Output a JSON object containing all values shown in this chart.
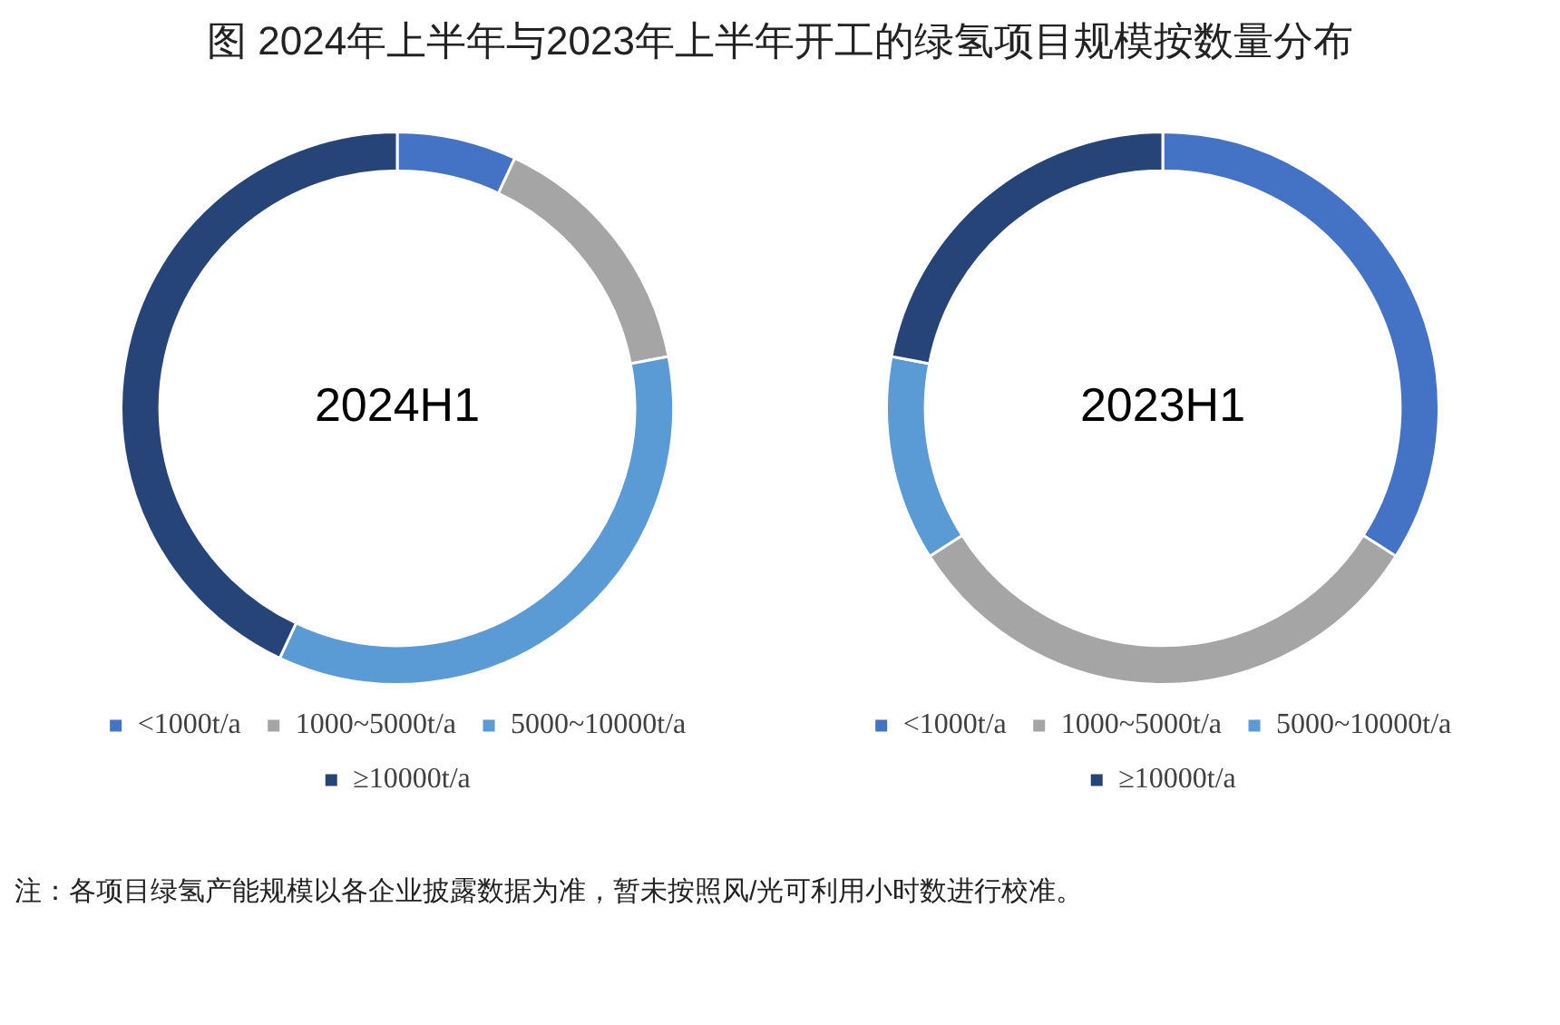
{
  "chart_data": [
    {
      "type": "donut",
      "title": "图  2024年上半年与2023年上半年开工的绿氢项目规模按数量分布",
      "annotations": [
        "2024H1"
      ],
      "categories": [
        "<1000t/a",
        "1000~5000t/a",
        "5000~10000t/a",
        "≥10000t/a"
      ],
      "values": [
        7,
        15,
        35,
        43
      ],
      "colors": [
        "#4472c4",
        "#a5a5a5",
        "#5b9bd5",
        "#264478"
      ],
      "legend": "bottom"
    },
    {
      "type": "donut",
      "annotations": [
        "2023H1",
        "注：各项目绿氢产能规模以各企业披露数据为准，暂未按照风/光可利用小时数进行校准。"
      ],
      "categories": [
        "<1000t/a",
        "1000~5000t/a",
        "5000~10000t/a",
        "≥10000t/a"
      ],
      "values": [
        34,
        32,
        12,
        22
      ],
      "colors": [
        "#4472c4",
        "#a5a5a5",
        "#5b9bd5",
        "#264478"
      ],
      "legend": "bottom"
    }
  ]
}
